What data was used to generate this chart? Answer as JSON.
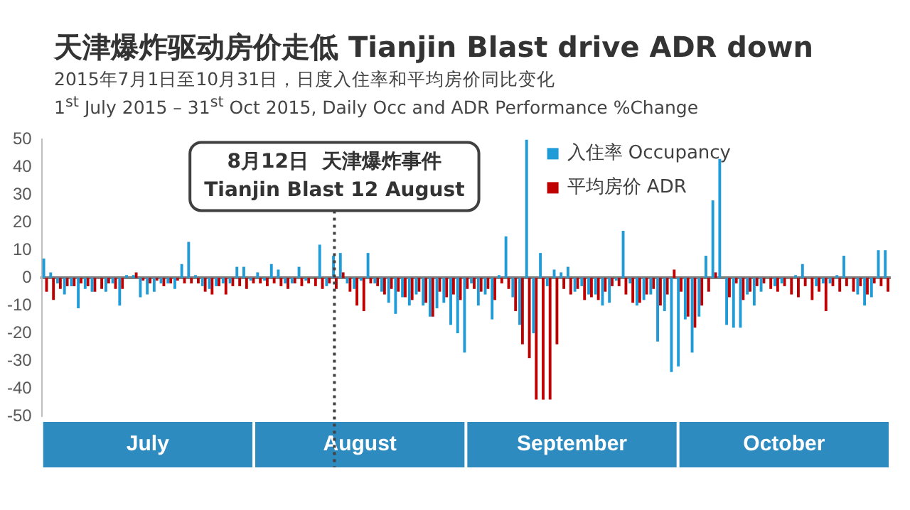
{
  "chart_data": {
    "type": "bar",
    "title": "天津爆炸驱动房价走低 Tianjin Blast drive ADR down",
    "subtitle": "2015年7月1日至10月31日，日度入住率和平均房价同比变化\n1$^{st}$ July 2015 – 31$^{st}$ Oct 2015, Daily Occ and ADR Performance %Change",
    "categories": [
      null,
      null,
      null,
      null,
      null,
      null,
      null,
      null,
      null,
      null,
      null,
      null,
      null,
      null,
      null,
      null,
      null,
      null,
      null,
      null,
      null,
      null,
      null,
      null,
      null,
      null,
      null,
      null,
      null,
      null,
      null,
      null,
      null,
      null,
      null,
      null,
      null,
      null,
      null,
      null,
      null,
      null,
      null,
      null,
      null,
      null,
      null,
      null,
      null,
      null,
      null,
      null,
      null,
      null,
      null,
      null,
      null,
      null,
      null,
      null,
      null,
      null,
      null,
      null,
      null,
      null,
      null,
      null,
      null,
      null,
      null,
      null,
      null,
      null,
      null,
      null,
      null,
      null,
      null,
      null,
      null,
      null,
      null,
      null,
      null,
      null,
      null,
      null,
      null,
      null,
      null,
      null,
      null,
      null,
      null,
      null,
      null,
      null,
      null,
      null,
      null,
      null,
      null,
      null,
      null,
      null,
      null,
      null,
      null,
      null,
      null,
      null,
      null,
      null,
      null,
      null,
      null,
      null,
      null,
      null,
      null,
      null,
      null
    ],
    "series": [
      {
        "name": "入住率 Occupancy",
        "color": "#1f9bd7",
        "values": [
          7,
          2,
          -2,
          -6,
          -3,
          -11,
          -4,
          -5,
          0,
          -5,
          -2,
          -10,
          1,
          1,
          -7,
          -6,
          -5,
          -2,
          -2,
          -4,
          5,
          13,
          1,
          -3,
          -4,
          -3,
          -2,
          -2,
          4,
          4,
          -1,
          2,
          -1,
          5,
          3,
          -2,
          -2,
          4,
          -1,
          0,
          12,
          -3,
          8,
          9,
          -2,
          -4,
          -1,
          9,
          -2,
          -5,
          -9,
          -13,
          -7,
          -10,
          -6,
          -10,
          -14,
          -11,
          -9,
          -17,
          -20,
          -27,
          -2,
          -10,
          -6,
          -15,
          1,
          15,
          -7,
          -17,
          50,
          -20,
          9,
          -3,
          3,
          2,
          4,
          -5,
          -3,
          -6,
          -6,
          -10,
          -9,
          -1,
          17,
          -2,
          -10,
          -8,
          -6,
          -23,
          -12,
          -34,
          -32,
          -15,
          -27,
          -14,
          8,
          28,
          43,
          -17,
          -18,
          -18,
          -6,
          -10,
          -5,
          0,
          -3,
          -2,
          0,
          1,
          5,
          0,
          -3,
          -2,
          -2,
          1,
          8,
          0,
          -6,
          -10,
          -7,
          10,
          10
        ]
      },
      {
        "name": "平均房价 ADR",
        "color": "#c00000",
        "values": [
          -5,
          -8,
          -4,
          -3,
          -3,
          -2,
          -3,
          -5,
          -4,
          -2,
          -4,
          -4,
          0,
          2,
          -1,
          -2,
          -1,
          -3,
          -2,
          -1,
          -2,
          -2,
          -2,
          -5,
          -6,
          -3,
          -6,
          -3,
          -3,
          -4,
          -2,
          -2,
          -3,
          -2,
          -3,
          -4,
          -2,
          -3,
          -2,
          -3,
          -4,
          -2,
          -4,
          2,
          -5,
          -10,
          -12,
          -2,
          -3,
          -6,
          -4,
          -5,
          -7,
          -8,
          -5,
          -9,
          -14,
          -5,
          -7,
          -6,
          -8,
          -4,
          -4,
          -5,
          -4,
          -8,
          -2,
          -4,
          -12,
          -24,
          -29,
          -44,
          -44,
          -44,
          -24,
          -4,
          -6,
          -4,
          -8,
          -7,
          -8,
          -5,
          -3,
          -3,
          -6,
          -9,
          -9,
          -6,
          -4,
          -10,
          -6,
          3,
          -5,
          -14,
          -18,
          -10,
          -5,
          2,
          0,
          -7,
          -2,
          -8,
          -5,
          -3,
          -2,
          -4,
          -5,
          -3,
          -6,
          -7,
          -3,
          -8,
          -5,
          -12,
          -3,
          -5,
          -3,
          -5,
          -3,
          -6,
          -2,
          -3,
          -5
        ]
      }
    ],
    "ylim": [
      -50,
      50
    ],
    "yticks": [
      -50,
      -40,
      -30,
      -20,
      -10,
      0,
      10,
      20,
      30,
      40,
      50
    ],
    "tick_labels": "y",
    "grid": false,
    "legend": "top right",
    "annotations": [
      "8月12日  天津爆炸事件\nTianjin Blast 12 August",
      "July",
      "August",
      "September",
      "October"
    ]
  }
}
